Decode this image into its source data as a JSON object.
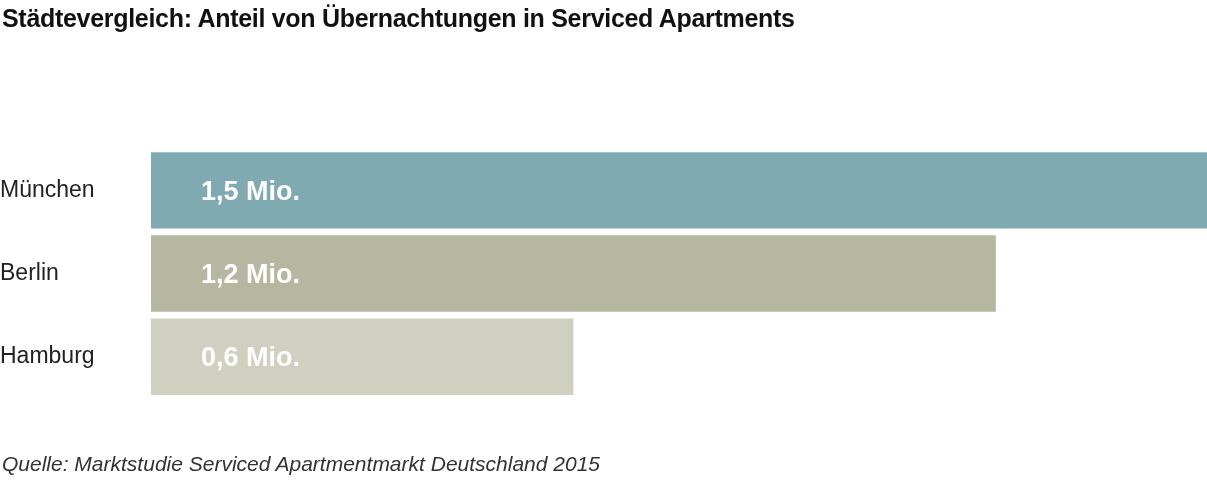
{
  "chart_data": {
    "type": "bar",
    "orientation": "horizontal",
    "title": "Städtevergleich: Anteil von Übernachtungen in Serviced Apartments",
    "categories": [
      "München",
      "Berlin",
      "Hamburg"
    ],
    "values": [
      1.5,
      1.2,
      0.6
    ],
    "value_labels": [
      "1,5 Mio.",
      "1,2 Mio.",
      "0,6 Mio."
    ],
    "colors": [
      "#80aab1",
      "#b5b7a0",
      "#cfd0bf"
    ],
    "tick_labels": "y",
    "legend": false,
    "annotations": [
      "Quelle: Marktstudie Serviced Apartmentmarkt Deutschland 2015"
    ]
  }
}
